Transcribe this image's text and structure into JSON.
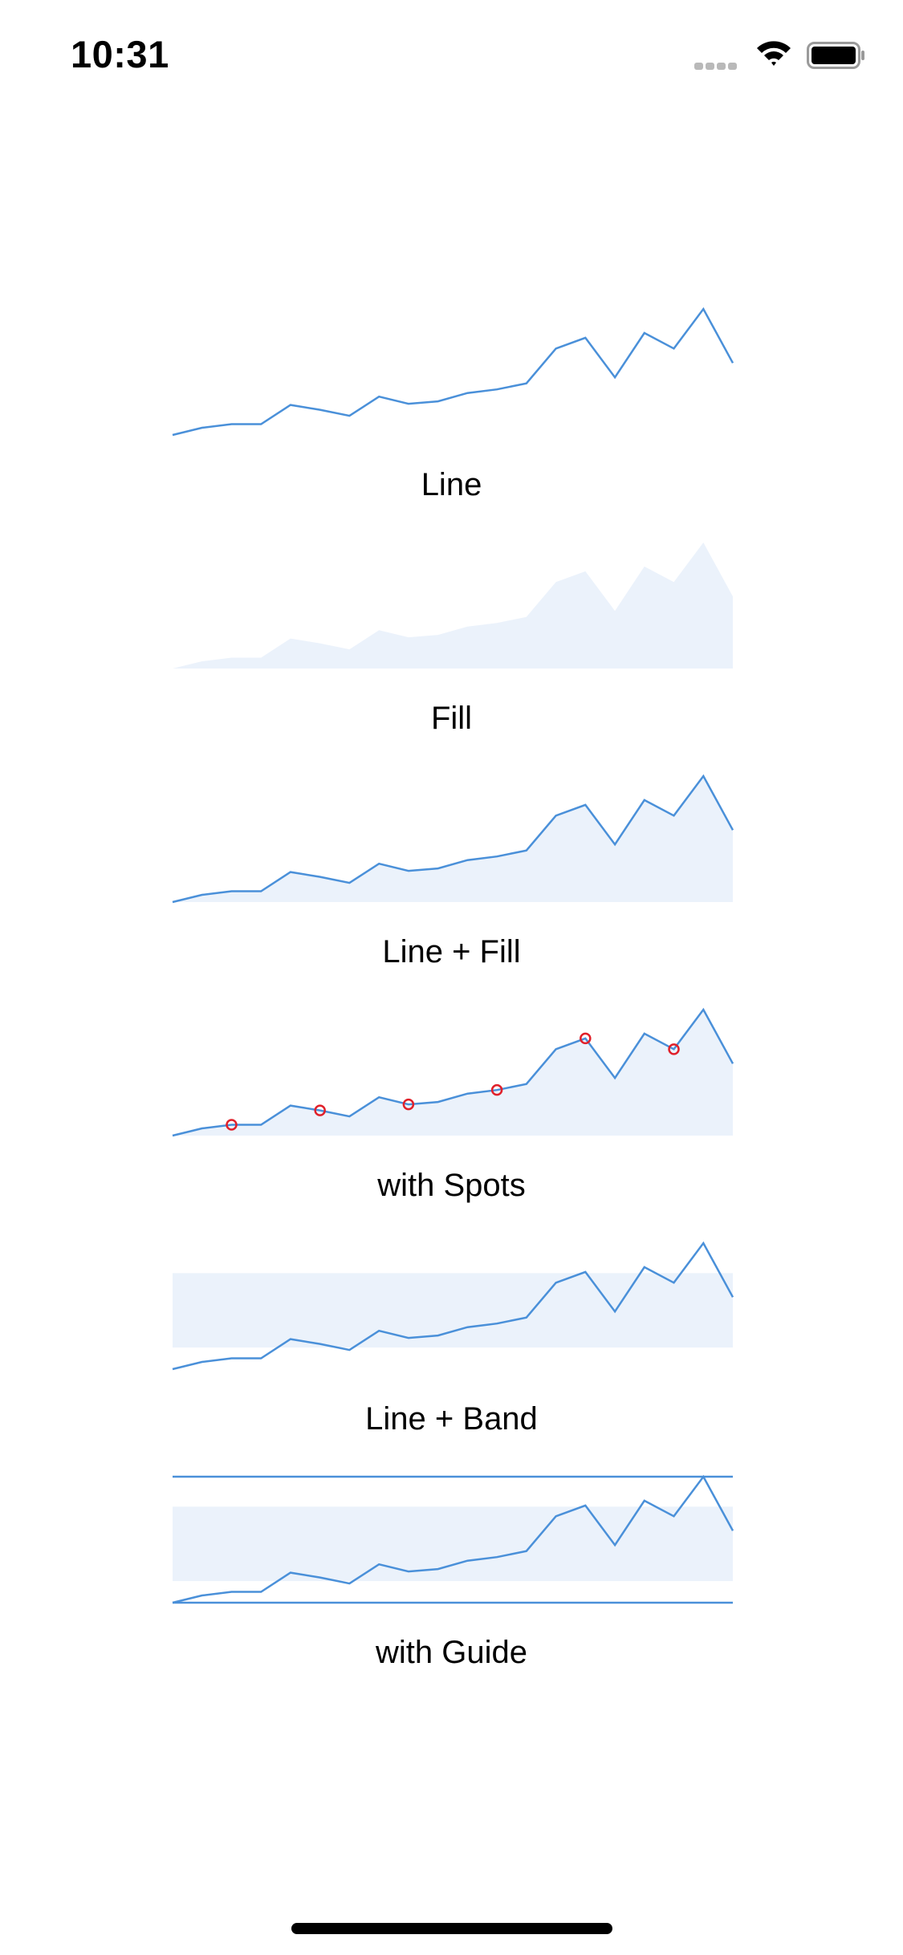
{
  "status_bar": {
    "time": "10:31",
    "icons": [
      "cellular-signal-icon",
      "wifi-icon",
      "battery-icon"
    ]
  },
  "colors": {
    "line": "#4a90d9",
    "fill": "#ebf2fb",
    "spot": "#e0202a"
  },
  "chart_data": [
    {
      "type": "line",
      "variant": "line",
      "label": "Line",
      "x": [
        0,
        1,
        2,
        3,
        4,
        5,
        6,
        7,
        8,
        9,
        10,
        11,
        12,
        13,
        14,
        15,
        16,
        17,
        18,
        19
      ],
      "y": [
        0,
        6,
        9,
        9,
        25,
        21,
        16,
        32,
        26,
        28,
        35,
        38,
        43,
        72,
        81,
        48,
        85,
        72,
        105,
        60
      ],
      "ylim": [
        0,
        105
      ],
      "spots": [],
      "band": null,
      "guides": []
    },
    {
      "type": "area",
      "variant": "fill",
      "label": "Fill",
      "x": [
        0,
        1,
        2,
        3,
        4,
        5,
        6,
        7,
        8,
        9,
        10,
        11,
        12,
        13,
        14,
        15,
        16,
        17,
        18,
        19
      ],
      "y": [
        0,
        6,
        9,
        9,
        25,
        21,
        16,
        32,
        26,
        28,
        35,
        38,
        43,
        72,
        81,
        48,
        85,
        72,
        105,
        60
      ],
      "ylim": [
        0,
        105
      ],
      "spots": [],
      "band": null,
      "guides": []
    },
    {
      "type": "area",
      "variant": "line+fill",
      "label": "Line + Fill",
      "x": [
        0,
        1,
        2,
        3,
        4,
        5,
        6,
        7,
        8,
        9,
        10,
        11,
        12,
        13,
        14,
        15,
        16,
        17,
        18,
        19
      ],
      "y": [
        0,
        6,
        9,
        9,
        25,
        21,
        16,
        32,
        26,
        28,
        35,
        38,
        43,
        72,
        81,
        48,
        85,
        72,
        105,
        60
      ],
      "ylim": [
        0,
        105
      ],
      "spots": [],
      "band": null,
      "guides": []
    },
    {
      "type": "area",
      "variant": "line+fill+spots",
      "label": "with Spots",
      "x": [
        0,
        1,
        2,
        3,
        4,
        5,
        6,
        7,
        8,
        9,
        10,
        11,
        12,
        13,
        14,
        15,
        16,
        17,
        18,
        19
      ],
      "y": [
        0,
        6,
        9,
        9,
        25,
        21,
        16,
        32,
        26,
        28,
        35,
        38,
        43,
        72,
        81,
        48,
        85,
        72,
        105,
        60
      ],
      "ylim": [
        0,
        105
      ],
      "spots": [
        2,
        5,
        8,
        11,
        14,
        17
      ],
      "band": null,
      "guides": []
    },
    {
      "type": "line",
      "variant": "line+band",
      "label": "Line + Band",
      "x": [
        0,
        1,
        2,
        3,
        4,
        5,
        6,
        7,
        8,
        9,
        10,
        11,
        12,
        13,
        14,
        15,
        16,
        17,
        18,
        19
      ],
      "y": [
        0,
        6,
        9,
        9,
        25,
        21,
        16,
        32,
        26,
        28,
        35,
        38,
        43,
        72,
        81,
        48,
        85,
        72,
        105,
        60
      ],
      "ylim": [
        0,
        105
      ],
      "spots": [],
      "band": [
        18,
        80
      ],
      "guides": []
    },
    {
      "type": "line",
      "variant": "line+band+guides",
      "label": "with Guide",
      "x": [
        0,
        1,
        2,
        3,
        4,
        5,
        6,
        7,
        8,
        9,
        10,
        11,
        12,
        13,
        14,
        15,
        16,
        17,
        18,
        19
      ],
      "y": [
        0,
        6,
        9,
        9,
        25,
        21,
        16,
        32,
        26,
        28,
        35,
        38,
        43,
        72,
        81,
        48,
        85,
        72,
        105,
        60
      ],
      "ylim": [
        0,
        105
      ],
      "spots": [],
      "band": [
        18,
        80
      ],
      "guides": [
        0,
        105
      ]
    }
  ]
}
